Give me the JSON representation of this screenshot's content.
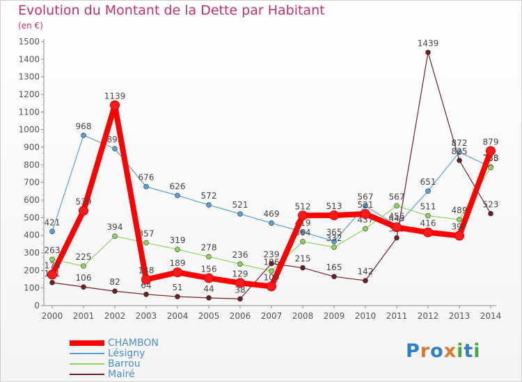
{
  "header": {
    "title": "Evolution du Montant de la Dette par Habitant",
    "unit": "(en €)"
  },
  "logo": {
    "text": "Proxiti",
    "colors": [
      "#2f7fc8",
      "#e0762a",
      "#2f7fc8",
      "#e0762a",
      "#46a83c",
      "#2f7fc8",
      "#46a83c"
    ]
  },
  "chart_data": {
    "type": "line",
    "categories": [
      "2000",
      "2001",
      "2002",
      "2003",
      "2004",
      "2005",
      "2006",
      "2007",
      "2008",
      "2009",
      "2010",
      "2011",
      "2012",
      "2013",
      "2014"
    ],
    "ylim": [
      0,
      1500
    ],
    "yticks": [
      0,
      100,
      200,
      300,
      400,
      500,
      600,
      700,
      800,
      900,
      1000,
      1100,
      1200,
      1300,
      1400,
      1500
    ],
    "grid": false,
    "legend_position": "bottom-left",
    "series": [
      {
        "name": "Lésigny",
        "color": "#5a9fd6",
        "values": [
          421,
          968,
          892,
          676,
          626,
          572,
          521,
          469,
          419,
          365,
          567,
          455,
          651,
          872,
          788
        ],
        "labels": [
          "421",
          "968",
          "892",
          "676",
          "626",
          "572",
          "521",
          "469",
          "419",
          "365",
          "567",
          "455",
          "651",
          "872",
          "788"
        ]
      },
      {
        "name": "Barrou",
        "color": "#8ed45a",
        "values": [
          263,
          225,
          394,
          357,
          319,
          278,
          236,
          196,
          364,
          332,
          437,
          567,
          511,
          489,
          785
        ],
        "labels": [
          "263",
          "225",
          "394",
          "357",
          "319",
          "278",
          "236",
          "196",
          "364",
          "332",
          "437",
          "567",
          "511",
          "489",
          "785"
        ]
      },
      {
        "name": "Mairé",
        "color": "#6b1f25",
        "values": [
          131,
          106,
          82,
          64,
          51,
          44,
          38,
          239,
          215,
          165,
          142,
          385,
          1439,
          825,
          523
        ],
        "labels": [
          "131",
          "106",
          "82",
          "64",
          "51",
          "44",
          "38",
          "239",
          "215",
          "165",
          "142",
          "385",
          "1439",
          "825",
          "523"
        ]
      },
      {
        "name": "CHAMBON",
        "color": "#ff0000",
        "values": [
          176,
          539,
          1139,
          148,
          189,
          156,
          129,
          109,
          512,
          513,
          521,
          445,
          416,
          397,
          879
        ],
        "labels": [
          "176",
          "539",
          "1139",
          "148",
          "189",
          "156",
          "129",
          "109",
          "512",
          "513",
          "521",
          "445",
          "416",
          "397",
          "879"
        ]
      }
    ]
  }
}
